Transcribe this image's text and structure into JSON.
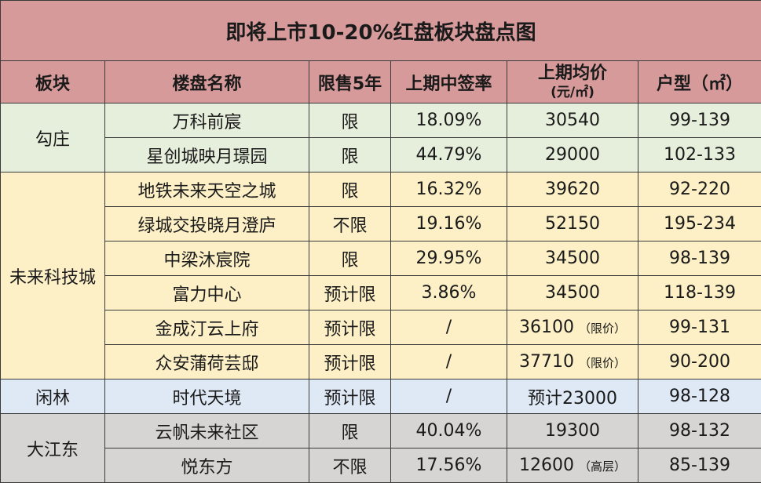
{
  "title": "即将上市10-20%红盘板块盘点图",
  "headers": {
    "district": "板块",
    "project": "楼盘名称",
    "limit": "限售5年",
    "rate": "上期中签率",
    "price": "上期均价",
    "price_unit": "(元/㎡)",
    "size": "户型（㎡）"
  },
  "groups": [
    {
      "district": "勾庄",
      "rows": [
        {
          "project": "万科前宸",
          "limit": "限",
          "rate": "18.09%",
          "price": "30540",
          "price_note": "",
          "size": "99-139"
        },
        {
          "project": "星创城映月璟园",
          "limit": "限",
          "rate": "44.79%",
          "price": "29000",
          "price_note": "",
          "size": "102-133"
        }
      ]
    },
    {
      "district": "未来科技城",
      "rows": [
        {
          "project": "地铁未来天空之城",
          "limit": "限",
          "rate": "16.32%",
          "price": "39620",
          "price_note": "",
          "size": "92-220"
        },
        {
          "project": "绿城交投晓月澄庐",
          "limit": "不限",
          "rate": "19.16%",
          "price": "52150",
          "price_note": "",
          "size": "195-234"
        },
        {
          "project": "中梁沐宸院",
          "limit": "限",
          "rate": "29.95%",
          "price": "34500",
          "price_note": "",
          "size": "98-139"
        },
        {
          "project": "富力中心",
          "limit": "预计限",
          "rate": "3.86%",
          "price": "34500",
          "price_note": "",
          "size": "118-139"
        },
        {
          "project": "金成汀云上府",
          "limit": "预计限",
          "rate": "/",
          "price": "36100",
          "price_note": "（限价）",
          "size": "99-131"
        },
        {
          "project": "众安蒲荷芸邸",
          "limit": "预计限",
          "rate": "/",
          "price": "37710",
          "price_note": "（限价）",
          "size": "90-200"
        }
      ]
    },
    {
      "district": "闲林",
      "rows": [
        {
          "project": "时代天境",
          "limit": "预计限",
          "rate": "/",
          "price": "预计23000",
          "price_note": "",
          "size": "98-128"
        }
      ]
    },
    {
      "district": "大江东",
      "rows": [
        {
          "project": "云帆未来社区",
          "limit": "限",
          "rate": "40.04%",
          "price": "19300",
          "price_note": "",
          "size": "98-132"
        },
        {
          "project": "悦东方",
          "limit": "不限",
          "rate": "17.56%",
          "price": "12600",
          "price_note": "（高层）",
          "size": "85-139"
        }
      ]
    }
  ]
}
